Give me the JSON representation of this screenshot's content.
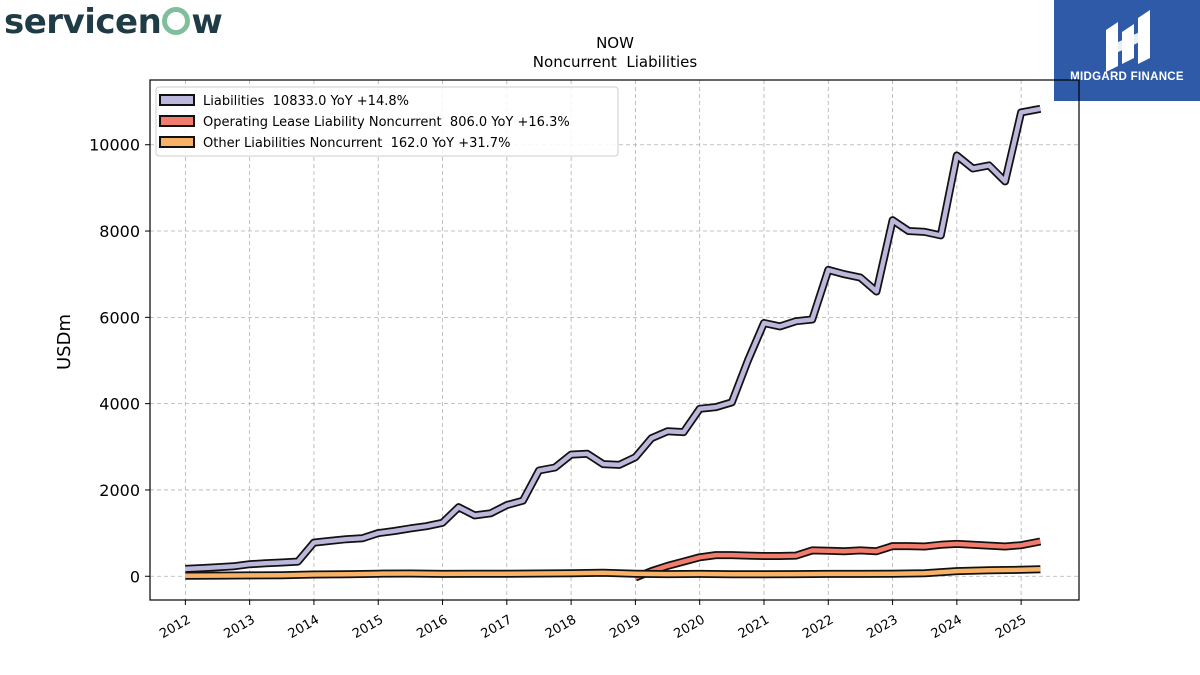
{
  "brand": {
    "logo_text_left": "servicen",
    "logo_text_right": "w"
  },
  "publisher": {
    "name": "MIDGARD FINANCE"
  },
  "chart_data": {
    "type": "line",
    "title": "NOW",
    "subtitle": "Noncurrent  Liabilities",
    "xlabel": "",
    "ylabel": "USDm",
    "xlim": [
      2011.45,
      2025.9
    ],
    "ylim": [
      -550,
      11500
    ],
    "x_ticks": [
      "2012",
      "2013",
      "2014",
      "2015",
      "2016",
      "2017",
      "2018",
      "2019",
      "2020",
      "2021",
      "2022",
      "2023",
      "2024",
      "2025"
    ],
    "y_ticks": [
      0,
      2000,
      4000,
      6000,
      8000,
      10000
    ],
    "grid": true,
    "legend_position": "top-left",
    "series": [
      {
        "name": "Liabilities",
        "legend_label": "Liabilities  10833.0 YoY +14.8%",
        "color": "#bcb8dc",
        "x": [
          2012.0,
          2012.25,
          2012.5,
          2012.75,
          2013.0,
          2013.25,
          2013.5,
          2013.75,
          2014.0,
          2014.25,
          2014.5,
          2014.75,
          2015.0,
          2015.25,
          2015.5,
          2015.75,
          2016.0,
          2016.25,
          2016.5,
          2016.75,
          2017.0,
          2017.25,
          2017.5,
          2017.75,
          2018.0,
          2018.25,
          2018.5,
          2018.75,
          2019.0,
          2019.25,
          2019.5,
          2019.75,
          2020.0,
          2020.25,
          2020.5,
          2020.75,
          2021.0,
          2021.25,
          2021.5,
          2021.75,
          2022.0,
          2022.25,
          2022.5,
          2022.75,
          2023.0,
          2023.25,
          2023.5,
          2023.75,
          2024.0,
          2024.25,
          2024.5,
          2024.75,
          2025.0,
          2025.3
        ],
        "y": [
          170,
          190,
          210,
          230,
          280,
          300,
          320,
          340,
          780,
          820,
          860,
          880,
          1000,
          1050,
          1110,
          1160,
          1240,
          1600,
          1410,
          1460,
          1650,
          1750,
          2450,
          2520,
          2820,
          2840,
          2600,
          2580,
          2760,
          3200,
          3360,
          3340,
          3880,
          3920,
          4030,
          5000,
          5870,
          5790,
          5910,
          5950,
          7100,
          7000,
          6920,
          6600,
          8250,
          8000,
          7980,
          7900,
          9750,
          9450,
          9520,
          9150,
          10750,
          10833
        ]
      },
      {
        "name": "Operating Lease Liability Noncurrent",
        "legend_label": "Operating Lease Liability Noncurrent  806.0 YoY +16.3%",
        "color": "#f27c6c",
        "x": [
          2019.0,
          2019.25,
          2019.5,
          2019.75,
          2020.0,
          2020.25,
          2020.5,
          2020.75,
          2021.0,
          2021.25,
          2021.5,
          2021.75,
          2022.0,
          2022.25,
          2022.5,
          2022.75,
          2023.0,
          2023.25,
          2023.5,
          2023.75,
          2024.0,
          2024.25,
          2024.5,
          2024.75,
          2025.0,
          2025.3
        ],
        "y": [
          -30,
          120,
          240,
          340,
          440,
          490,
          490,
          480,
          470,
          470,
          480,
          600,
          590,
          580,
          600,
          580,
          700,
          700,
          690,
          730,
          750,
          730,
          710,
          690,
          720,
          806
        ]
      },
      {
        "name": "Other Liabilities Noncurrent",
        "legend_label": "Other Liabilities Noncurrent  162.0 YoY +31.7%",
        "color": "#f7b267",
        "x": [
          2012.0,
          2012.5,
          2013.0,
          2013.5,
          2014.0,
          2014.5,
          2015.0,
          2015.5,
          2016.0,
          2016.5,
          2017.0,
          2017.5,
          2018.0,
          2018.5,
          2019.0,
          2019.5,
          2020.0,
          2020.5,
          2021.0,
          2021.5,
          2022.0,
          2022.5,
          2023.0,
          2023.5,
          2024.0,
          2024.5,
          2025.0,
          2025.3
        ],
        "y": [
          10,
          15,
          20,
          25,
          40,
          45,
          60,
          65,
          55,
          60,
          60,
          65,
          70,
          80,
          60,
          50,
          55,
          45,
          45,
          50,
          55,
          55,
          60,
          70,
          120,
          140,
          150,
          162
        ]
      }
    ]
  }
}
